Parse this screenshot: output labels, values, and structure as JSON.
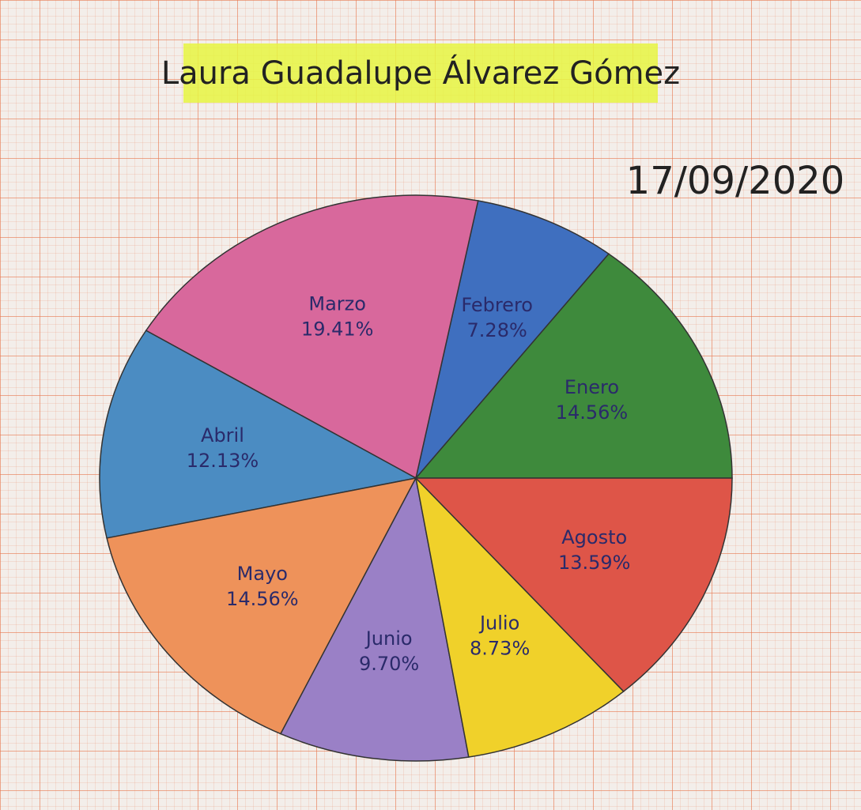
{
  "chart_data": {
    "type": "pie",
    "title": "Laura Guadalupe Álvarez Gómez",
    "subtitle": "17/09/2020",
    "categories": [
      "Enero",
      "Febrero",
      "Marzo",
      "Abril",
      "Mayo",
      "Junio",
      "Julio",
      "Agosto"
    ],
    "values": [
      14.56,
      7.28,
      19.41,
      12.13,
      14.56,
      9.7,
      8.73,
      13.59
    ],
    "value_labels": [
      "14.56%",
      "7.28%",
      "19.41%",
      "12.13%",
      "14.56%",
      "9.70%",
      "8.73%",
      "13.59%"
    ],
    "colors": [
      "#3e8a3c",
      "#3f6fbf",
      "#d8689c",
      "#4b8cc2",
      "#ee925a",
      "#9a80c6",
      "#f0d12a",
      "#de5548"
    ]
  }
}
